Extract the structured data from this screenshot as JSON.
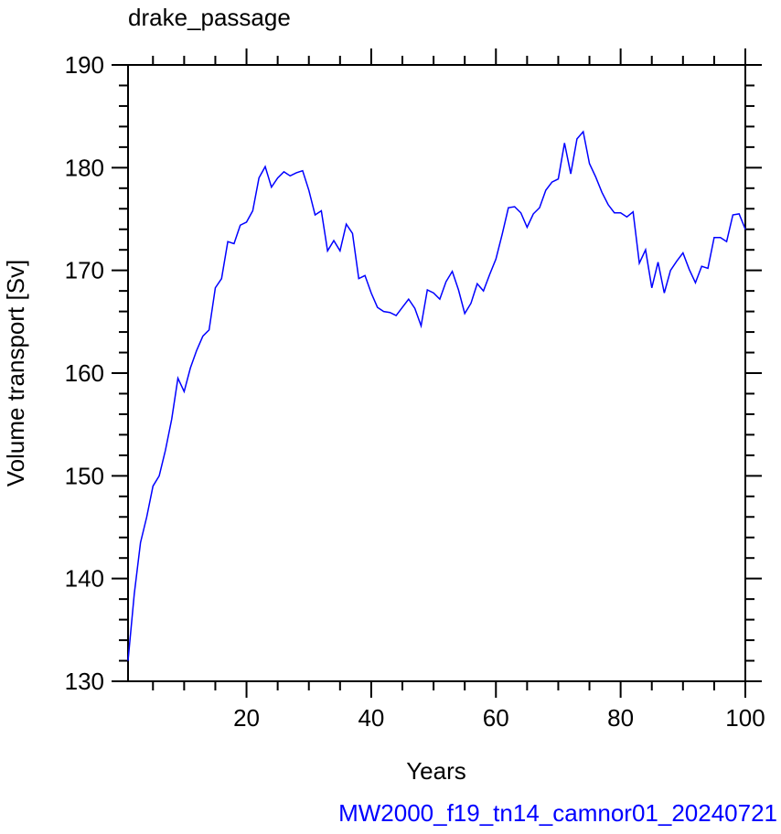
{
  "chart_data": {
    "type": "line",
    "title": "drake_passage",
    "x_label": "Years",
    "y_label": "Volume transport [Sv]",
    "footer": "MW2000_f19_tn14_camnor01_20240721",
    "xlim": [
      1,
      100
    ],
    "xticks": [
      20,
      40,
      60,
      80,
      100
    ],
    "ylim": [
      130,
      190
    ],
    "yticks": [
      130,
      140,
      150,
      160,
      170,
      180,
      190
    ],
    "x": [
      1,
      2,
      3,
      4,
      5,
      6,
      7,
      8,
      9,
      10,
      11,
      12,
      13,
      14,
      15,
      16,
      17,
      18,
      19,
      20,
      21,
      22,
      23,
      24,
      25,
      26,
      27,
      28,
      29,
      30,
      31,
      32,
      33,
      34,
      35,
      36,
      37,
      38,
      39,
      40,
      41,
      42,
      43,
      44,
      45,
      46,
      47,
      48,
      49,
      50,
      51,
      52,
      53,
      54,
      55,
      56,
      57,
      58,
      59,
      60,
      61,
      62,
      63,
      64,
      65,
      66,
      67,
      68,
      69,
      70,
      71,
      72,
      73,
      74,
      75,
      76,
      77,
      78,
      79,
      80,
      81,
      82,
      83,
      84,
      85,
      86,
      87,
      88,
      89,
      90,
      91,
      92,
      93,
      94,
      95,
      96,
      97,
      98,
      99,
      100
    ],
    "series": [
      {
        "color": "#0000ff",
        "values": [
          132,
          138.5,
          143.5,
          146,
          149,
          150,
          152.5,
          155.5,
          159.5,
          158.2,
          160.5,
          162.2,
          163.6,
          164.2,
          168.3,
          169.2,
          172.8,
          172.6,
          174.4,
          174.7,
          175.8,
          179,
          180.1,
          178.1,
          179,
          179.6,
          179.2,
          179.5,
          179.7,
          177.8,
          175.4,
          175.8,
          171.9,
          172.9,
          171.9,
          174.5,
          173.6,
          169.2,
          169.5,
          167.8,
          166.4,
          166,
          165.9,
          165.6,
          166.4,
          167.2,
          166.3,
          164.6,
          168.1,
          167.8,
          167.2,
          168.9,
          169.9,
          168.1,
          165.8,
          166.8,
          168.7,
          168,
          169.6,
          171.1,
          173.5,
          176.1,
          176.2,
          175.6,
          174.2,
          175.5,
          176.1,
          177.8,
          178.6,
          178.9,
          182.4,
          179.4,
          182.8,
          183.5,
          180.4,
          179.1,
          177.6,
          176.4,
          175.6,
          175.6,
          175.2,
          175.7,
          170.7,
          172,
          168.3,
          170.8,
          167.8,
          170,
          170.9,
          171.7,
          170.1,
          168.8,
          170.4,
          170.2,
          173.2,
          173.2,
          172.8,
          175.4,
          175.5,
          174
        ]
      }
    ]
  }
}
